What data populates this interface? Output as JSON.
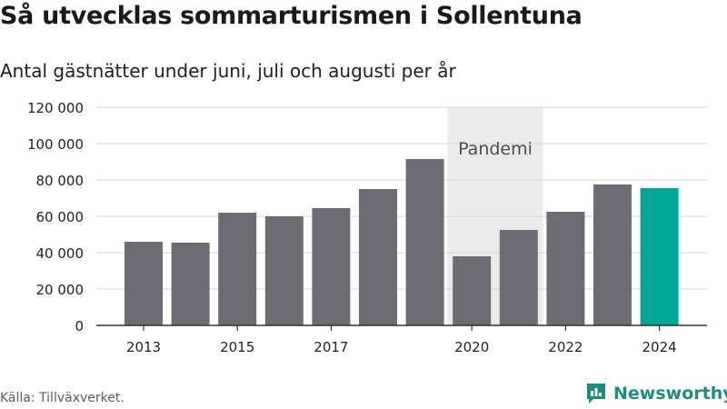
{
  "title": "Så utvecklas sommarturismen i Sollentuna",
  "subtitle": "Antal gästnätter under juni, juli och augusti per år",
  "source": "Källa: Tillväxverket.",
  "logo": {
    "name": "Newsworthy",
    "icon": "newsworthy-logo-icon"
  },
  "colors": {
    "bar": "#6d6c72",
    "highlight": "#00a698",
    "shade": "#ebebeb",
    "grid": "#d6d6d6",
    "brand": "#1d8c7e"
  },
  "chart_data": {
    "type": "bar",
    "categories": [
      "2013",
      "2014",
      "2015",
      "2016",
      "2017",
      "2018",
      "2019",
      "2020",
      "2021",
      "2022",
      "2023",
      "2024"
    ],
    "x_tick_labels": [
      "2013",
      "",
      "2015",
      "",
      "2017",
      "",
      "",
      "2020",
      "",
      "2022",
      "",
      "2024"
    ],
    "values": [
      46000,
      45500,
      62000,
      60000,
      64500,
      75000,
      91500,
      38000,
      52500,
      62500,
      77500,
      75500
    ],
    "highlight_index": 11,
    "ylim": [
      0,
      120000
    ],
    "yticks": [
      0,
      20000,
      40000,
      60000,
      80000,
      100000,
      120000
    ],
    "ytick_labels": [
      "0",
      "20 000",
      "40 000",
      "60 000",
      "80 000",
      "100 000",
      "120 000"
    ],
    "grid": true,
    "annotation": {
      "label": "Pandemi",
      "from": "2020",
      "to": "2021"
    },
    "xlabel": "",
    "ylabel": ""
  }
}
